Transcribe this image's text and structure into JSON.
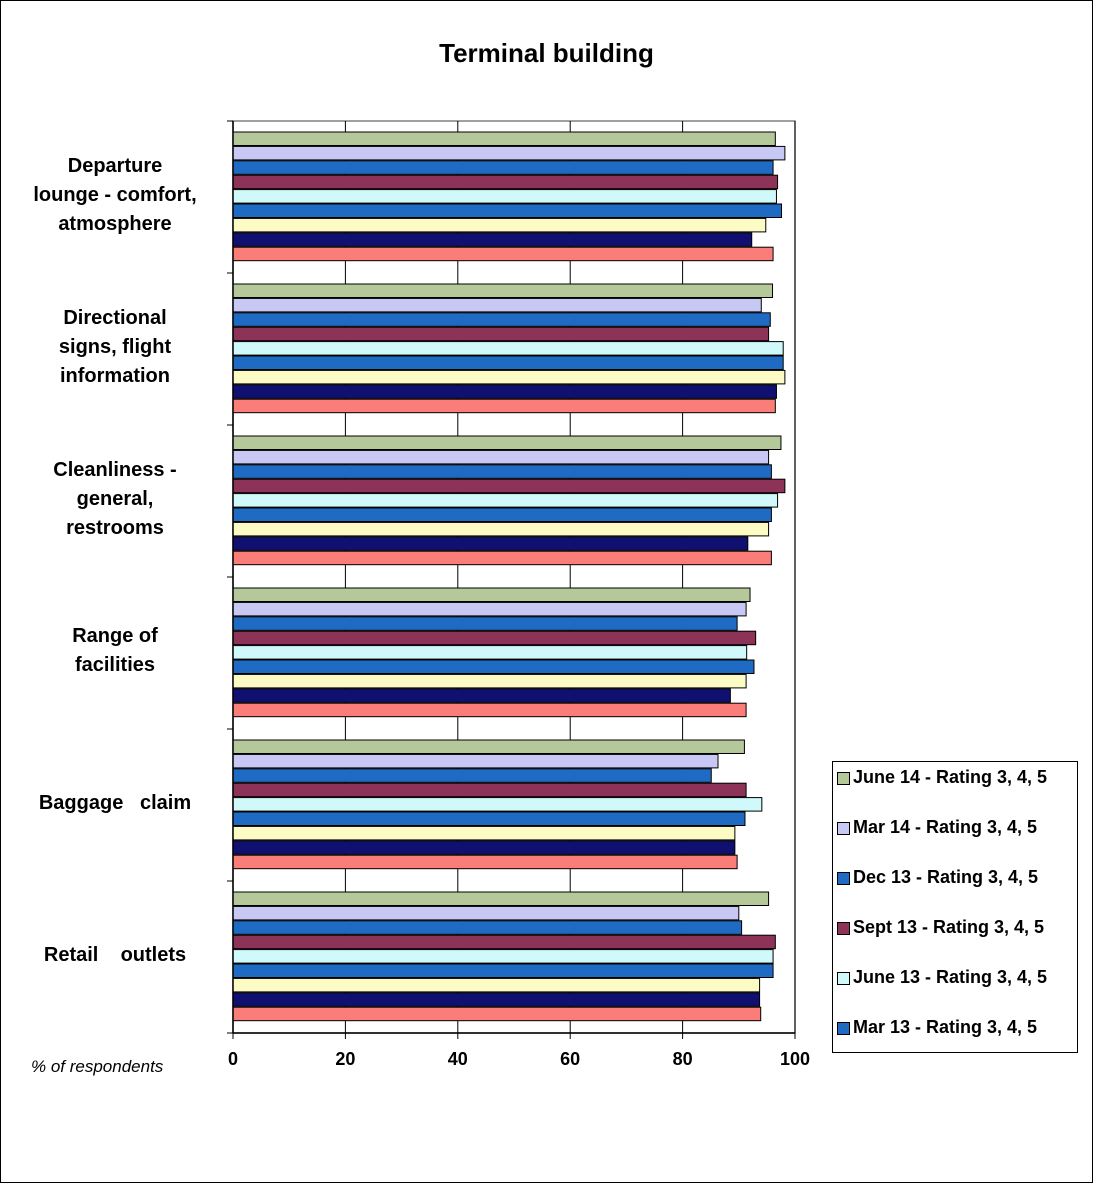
{
  "title": "Terminal building",
  "x_unit_label": "% of respondents",
  "chart_data": {
    "type": "bar",
    "orientation": "horizontal",
    "title": "Terminal building",
    "xlabel": "% of respondents",
    "xlim": [
      0,
      100
    ],
    "x_ticks": [
      0,
      20,
      40,
      60,
      80,
      100
    ],
    "grid": "vertical gridlines",
    "legend_position": "right-bottom",
    "categories": [
      "Departure lounge - comfort, atmosphere",
      "Directional signs, flight information",
      "Cleanliness - general, restrooms",
      "Range of facilities",
      "Baggage claim",
      "Retail outlets"
    ],
    "category_label_lines": [
      [
        "Departure",
        "lounge - comfort,",
        "atmosphere"
      ],
      [
        "Directional",
        "signs, flight",
        "information"
      ],
      [
        "Cleanliness -",
        "general,",
        "restrooms"
      ],
      [
        "Range of",
        "facilities"
      ],
      [
        "Baggage   claim"
      ],
      [
        "Retail    outlets"
      ]
    ],
    "series": [
      {
        "name": "June 14 - Rating 3, 4, 5",
        "color": "#b4c89a",
        "values": [
          96.5,
          96,
          97.5,
          92,
          91,
          95.3
        ],
        "in_legend": true
      },
      {
        "name": "Mar 14 - Rating 3, 4, 5",
        "color": "#c8c8f5",
        "values": [
          98.2,
          94,
          95.3,
          91.3,
          86.3,
          90
        ],
        "in_legend": true
      },
      {
        "name": "Dec 13 - Rating 3, 4, 5",
        "color": "#1f6bc4",
        "values": [
          96.1,
          95.6,
          95.8,
          89.7,
          85.1,
          90.5
        ],
        "in_legend": true
      },
      {
        "name": "Sept 13 - Rating 3, 4, 5",
        "color": "#8e3358",
        "values": [
          96.9,
          95.3,
          98.2,
          93,
          91.3,
          96.5
        ],
        "in_legend": true
      },
      {
        "name": "June 13 - Rating 3, 4, 5",
        "color": "#cff9fb",
        "values": [
          96.7,
          97.9,
          96.9,
          91.4,
          94.1,
          96.1
        ],
        "in_legend": true
      },
      {
        "name": "Mar 13 - Rating 3, 4, 5",
        "color": "#1f6bc4",
        "values": [
          97.6,
          97.9,
          95.8,
          92.7,
          91.1,
          96.1
        ],
        "in_legend": true
      },
      {
        "name": "",
        "color": "#fdfbc4",
        "values": [
          94.8,
          98.2,
          95.3,
          91.3,
          89.3,
          93.7
        ],
        "in_legend": false
      },
      {
        "name": "",
        "color": "#101070",
        "values": [
          92.3,
          96.7,
          91.6,
          88.5,
          89.3,
          93.7
        ],
        "in_legend": false
      },
      {
        "name": "",
        "color": "#fb7d7a",
        "values": [
          96.1,
          96.5,
          95.8,
          91.3,
          89.7,
          93.9
        ],
        "in_legend": false
      }
    ]
  }
}
